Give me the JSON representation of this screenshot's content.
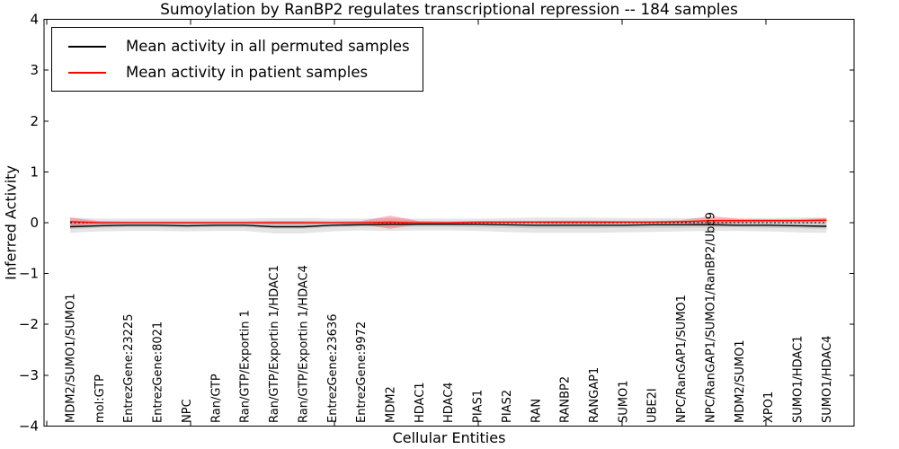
{
  "figure": {
    "title": "Sumoylation by RanBP2 regulates transcriptional repression -- 184 samples",
    "xlabel": "Cellular Entities",
    "ylabel": "Inferred Activity"
  },
  "legend": {
    "entries": [
      {
        "label": "Mean activity in all permuted samples",
        "color": "#000000"
      },
      {
        "label": "Mean activity in patient samples",
        "color": "#ff0000"
      }
    ]
  },
  "chart_data": {
    "type": "line",
    "title": "Sumoylation by RanBP2 regulates transcriptional repression -- 184 samples",
    "xlabel": "Cellular Entities",
    "ylabel": "Inferred Activity",
    "ylim": [
      -4,
      4
    ],
    "yticks": [
      -4,
      -3,
      -2,
      -1,
      0,
      1,
      2,
      3,
      4
    ],
    "grid": false,
    "legend_position": "upper left",
    "categories": [
      "MDM2/SUMO1/SUMO1",
      "mol:GTP",
      "EntrezGene:23225",
      "EntrezGene:8021",
      "NPC",
      "Ran/GTP",
      "Ran/GTP/Exportin 1",
      "Ran/GTP/Exportin 1/HDAC1",
      "Ran/GTP/Exportin 1/HDAC4",
      "EntrezGene:23636",
      "EntrezGene:9972",
      "MDM2",
      "HDAC1",
      "HDAC4",
      "PIAS1",
      "PIAS2",
      "RAN",
      "RANBP2",
      "RANGAP1",
      "SUMO1",
      "UBE2I",
      "NPC/RanGAP1/SUMO1",
      "NPC/RanGAP1/SUMO1/RanBP2/Ubc9",
      "MDM2/SUMO1",
      "XPO1",
      "SUMO1/HDAC1",
      "SUMO1/HDAC4"
    ],
    "series": [
      {
        "name": "Mean activity in all permuted samples",
        "color": "#000000",
        "values": [
          -0.08,
          -0.06,
          -0.05,
          -0.05,
          -0.06,
          -0.05,
          -0.05,
          -0.08,
          -0.08,
          -0.05,
          -0.04,
          -0.03,
          -0.03,
          -0.03,
          -0.03,
          -0.04,
          -0.05,
          -0.05,
          -0.05,
          -0.05,
          -0.04,
          -0.04,
          -0.04,
          -0.05,
          -0.05,
          -0.06,
          -0.07
        ]
      },
      {
        "name": "Mean activity in patient samples",
        "color": "#ff0000",
        "values": [
          0.02,
          0.0,
          0.0,
          0.0,
          0.0,
          0.0,
          0.0,
          0.0,
          0.0,
          0.0,
          0.0,
          0.01,
          0.0,
          0.0,
          0.01,
          0.01,
          0.01,
          0.01,
          0.01,
          0.01,
          0.01,
          0.02,
          0.04,
          0.04,
          0.04,
          0.04,
          0.05
        ]
      }
    ],
    "bands": [
      {
        "name": "permuted-spread-outer",
        "color": "#dcdcdc",
        "opacity": 0.75,
        "upper": [
          0.1,
          0.08,
          0.08,
          0.08,
          0.08,
          0.08,
          0.08,
          0.09,
          0.09,
          0.08,
          0.08,
          0.09,
          0.08,
          0.08,
          0.08,
          0.09,
          0.1,
          0.1,
          0.1,
          0.09,
          0.09,
          0.09,
          0.08,
          0.08,
          0.09,
          0.1,
          0.1
        ],
        "lower": [
          -0.2,
          -0.17,
          -0.16,
          -0.16,
          -0.17,
          -0.16,
          -0.16,
          -0.21,
          -0.21,
          -0.17,
          -0.15,
          -0.16,
          -0.15,
          -0.15,
          -0.16,
          -0.18,
          -0.2,
          -0.2,
          -0.2,
          -0.19,
          -0.18,
          -0.17,
          -0.16,
          -0.16,
          -0.17,
          -0.19,
          -0.2
        ]
      },
      {
        "name": "permuted-spread-inner",
        "color": "#c6c6c6",
        "opacity": 0.8,
        "upper": [
          0.04,
          0.03,
          0.03,
          0.03,
          0.03,
          0.03,
          0.03,
          0.03,
          0.03,
          0.03,
          0.03,
          0.04,
          0.03,
          0.03,
          0.03,
          0.04,
          0.04,
          0.04,
          0.04,
          0.04,
          0.04,
          0.04,
          0.03,
          0.03,
          0.04,
          0.04,
          0.04
        ],
        "lower": [
          -0.13,
          -0.1,
          -0.09,
          -0.09,
          -0.1,
          -0.09,
          -0.09,
          -0.12,
          -0.12,
          -0.09,
          -0.08,
          -0.08,
          -0.08,
          -0.08,
          -0.09,
          -0.1,
          -0.11,
          -0.11,
          -0.11,
          -0.1,
          -0.1,
          -0.1,
          -0.09,
          -0.09,
          -0.1,
          -0.11,
          -0.12
        ]
      },
      {
        "name": "patient-spread",
        "color": "#ff0000",
        "opacity": 0.27,
        "half_width": [
          0.08,
          0.03,
          0.02,
          0.02,
          0.02,
          0.02,
          0.02,
          0.03,
          0.03,
          0.02,
          0.03,
          0.13,
          0.03,
          0.02,
          0.02,
          0.02,
          0.02,
          0.03,
          0.03,
          0.02,
          0.02,
          0.03,
          0.09,
          0.04,
          0.03,
          0.03,
          0.04
        ]
      }
    ],
    "zero_line": {
      "value": 0,
      "style": "dotted",
      "color": "#000000"
    }
  }
}
